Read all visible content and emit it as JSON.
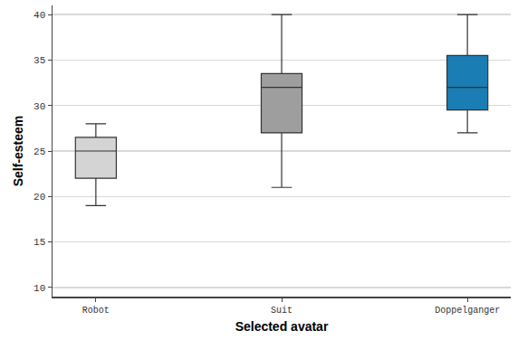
{
  "chart_data": {
    "type": "box",
    "x_label": "Selected avatar",
    "y_label": "Self-esteem",
    "categories": [
      "Robot",
      "Suit",
      "Doppelganger"
    ],
    "min": [
      19,
      21,
      27
    ],
    "q1": [
      22,
      27,
      29.5
    ],
    "median": [
      25,
      32,
      32
    ],
    "q3": [
      26.5,
      33.5,
      35.5
    ],
    "max": [
      28,
      40,
      40
    ],
    "colors": [
      "#d4d4d4",
      "#9e9e9e",
      "#1a7db3"
    ],
    "ylim": [
      9,
      41
    ],
    "yticks": [
      10,
      15,
      20,
      25,
      30,
      35,
      40
    ],
    "grid": true
  }
}
